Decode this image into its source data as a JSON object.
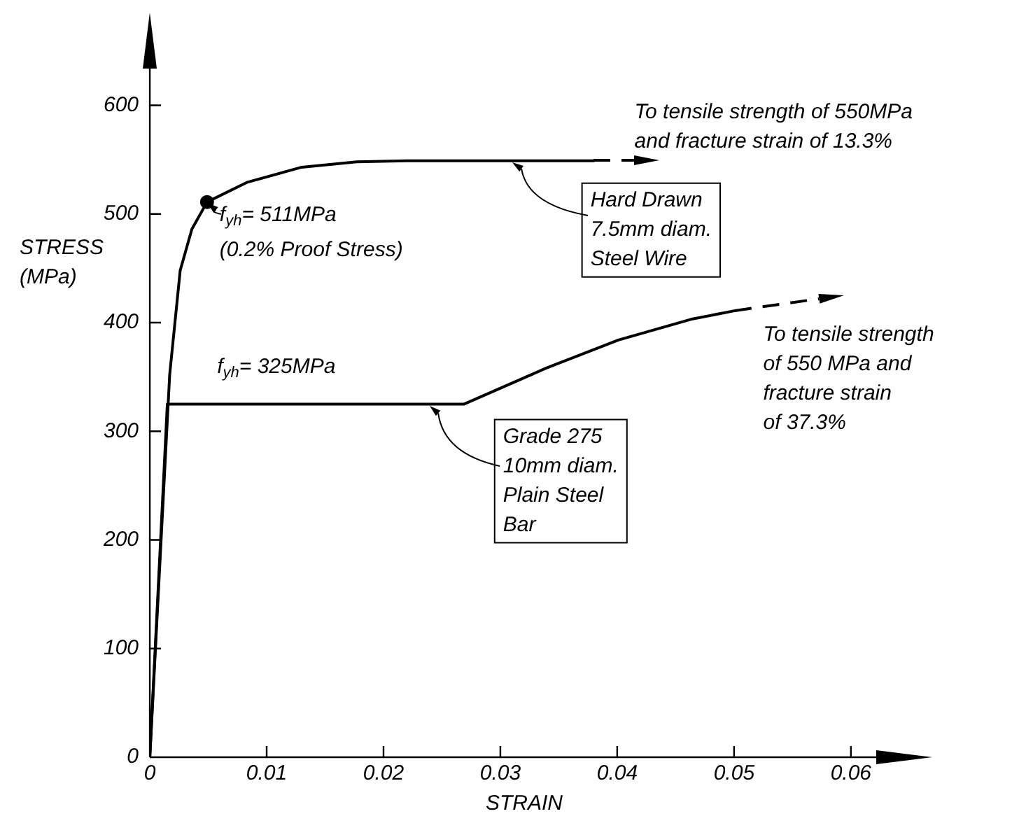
{
  "chart_data": {
    "type": "line",
    "xlabel": "STRAIN",
    "ylabel": "STRESS\n(MPa)",
    "xlim": [
      0,
      0.066
    ],
    "ylim": [
      0,
      675
    ],
    "xticks": [
      0,
      0.01,
      0.02,
      0.03,
      0.04,
      0.05,
      0.06
    ],
    "yticks": [
      0,
      100,
      200,
      300,
      400,
      500,
      600
    ],
    "grid": false,
    "legend": false,
    "marker": "none",
    "series": [
      {
        "color": "#000000",
        "line_style": "solid",
        "x": [
          0,
          0.0017,
          0.0026,
          0.0036,
          0.0049,
          0.0083,
          0.013,
          0.0177,
          0.022,
          0.038
        ],
        "values": [
          0,
          352,
          448,
          486,
          511,
          529,
          543,
          548,
          549,
          549
        ]
      },
      {
        "color": "#000000",
        "line_style": "solid",
        "x": [
          0,
          0.0015,
          0.0269,
          0.0339,
          0.0401,
          0.0463,
          0.0501
        ],
        "values": [
          0,
          325,
          325,
          358,
          384,
          403,
          411
        ]
      },
      {
        "type": "scatter",
        "color": "#000000",
        "marker": "circle",
        "x": [
          0.0049
        ],
        "values": [
          511
        ]
      }
    ],
    "annotations": [
      {
        "text": "To tensile strength of 550MPa\nand fracture strain of 13.3%",
        "x": 0.038,
        "y": 549
      },
      {
        "text": "Hard Drawn\n7.5mm diam.\nSteel Wire",
        "x": 0.031,
        "y": 549
      },
      {
        "text": "f$_{yh}$= 511MPa\n(0.2% Proof Stress)",
        "x": 0.0049,
        "y": 511
      },
      {
        "text": "f$_{yh}$= 325MPa",
        "x": 0.006,
        "y": 325
      },
      {
        "text": "Grade 275\n10mm diam.\nPlain Steel\nBar",
        "x": 0.024,
        "y": 325
      },
      {
        "text": "To tensile strength\nof 550 MPa and\nfracture strain\nof 37.3%",
        "x": 0.0501,
        "y": 411
      }
    ]
  }
}
